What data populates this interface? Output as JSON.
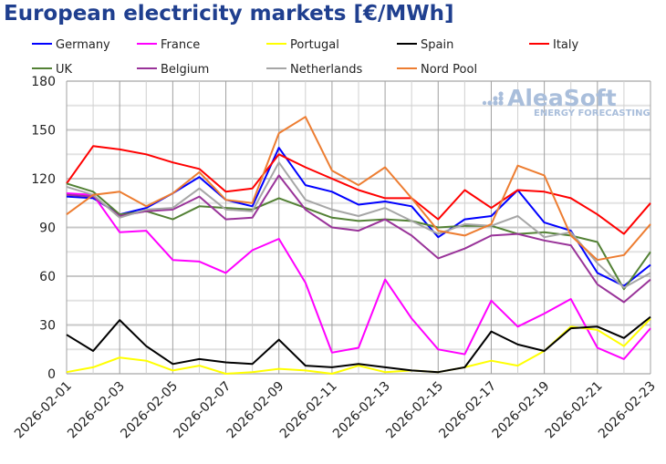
{
  "chart_data": {
    "type": "line",
    "title": "European electricity markets [€/MWh]",
    "xlabel": "",
    "ylabel": "",
    "ylim": [
      0,
      180
    ],
    "yticks": [
      0,
      30,
      60,
      90,
      120,
      150,
      180
    ],
    "grid": true,
    "legend_placement": "top",
    "x": [
      "2026-02-01",
      "2026-02-02",
      "2026-02-03",
      "2026-02-04",
      "2026-02-05",
      "2026-02-06",
      "2026-02-07",
      "2026-02-08",
      "2026-02-09",
      "2026-02-10",
      "2026-02-11",
      "2026-02-12",
      "2026-02-13",
      "2026-02-14",
      "2026-02-15",
      "2026-02-16",
      "2026-02-17",
      "2026-02-18",
      "2026-02-19",
      "2026-02-20",
      "2026-02-21",
      "2026-02-22",
      "2026-02-23"
    ],
    "xtick_labels": [
      "2026-02-01",
      "2026-02-03",
      "2026-02-05",
      "2026-02-07",
      "2026-02-09",
      "2026-02-11",
      "2026-02-13",
      "2026-02-15",
      "2026-02-17",
      "2026-02-19",
      "2026-02-21",
      "2026-02-23"
    ],
    "series": [
      {
        "name": "Germany",
        "color": "#0000ff",
        "values": [
          109,
          108,
          98,
          102,
          111,
          121,
          107,
          103,
          139,
          116,
          112,
          104,
          106,
          103,
          84,
          95,
          97,
          113,
          93,
          88,
          62,
          54,
          67
        ]
      },
      {
        "name": "France",
        "color": "#ff00ff",
        "values": [
          111,
          110,
          87,
          88,
          70,
          69,
          62,
          76,
          83,
          56,
          13,
          16,
          58,
          34,
          15,
          12,
          45,
          29,
          37,
          46,
          16,
          9,
          28
        ]
      },
      {
        "name": "Portugal",
        "color": "#ffff00",
        "values": [
          1,
          4,
          10,
          8,
          2,
          5,
          0,
          1,
          3,
          2,
          0,
          5,
          1,
          2,
          1,
          4,
          8,
          5,
          14,
          29,
          27,
          17,
          34
        ]
      },
      {
        "name": "Spain",
        "color": "#000000",
        "values": [
          24,
          14,
          33,
          17,
          6,
          9,
          7,
          6,
          21,
          5,
          4,
          6,
          4,
          2,
          1,
          4,
          26,
          18,
          14,
          28,
          29,
          22,
          35
        ]
      },
      {
        "name": "Italy",
        "color": "#ff0000",
        "values": [
          117,
          140,
          138,
          135,
          130,
          126,
          112,
          114,
          135,
          127,
          120,
          113,
          108,
          108,
          95,
          113,
          102,
          113,
          112,
          108,
          98,
          86,
          105
        ]
      },
      {
        "name": "UK",
        "color": "#538135",
        "values": [
          117,
          112,
          98,
          100,
          95,
          103,
          102,
          101,
          108,
          102,
          96,
          94,
          95,
          94,
          90,
          91,
          91,
          86,
          87,
          85,
          81,
          52,
          75
        ]
      },
      {
        "name": "Belgium",
        "color": "#993399",
        "values": [
          110,
          109,
          97,
          100,
          101,
          109,
          95,
          96,
          122,
          101,
          90,
          88,
          95,
          85,
          71,
          77,
          85,
          86,
          82,
          79,
          55,
          44,
          58
        ]
      },
      {
        "name": "Netherlands",
        "color": "#a6a6a6",
        "values": [
          115,
          110,
          96,
          101,
          102,
          114,
          101,
          100,
          130,
          107,
          101,
          97,
          102,
          94,
          86,
          92,
          91,
          97,
          84,
          87,
          68,
          53,
          62
        ]
      },
      {
        "name": "Nord Pool",
        "color": "#ed7d31",
        "values": [
          98,
          110,
          112,
          103,
          111,
          124,
          107,
          105,
          148,
          158,
          125,
          116,
          127,
          108,
          88,
          85,
          92,
          128,
          122,
          85,
          70,
          73,
          92
        ]
      }
    ]
  },
  "logo": {
    "name": "AleaSoft",
    "tagline": "ENERGY FORECASTING"
  }
}
